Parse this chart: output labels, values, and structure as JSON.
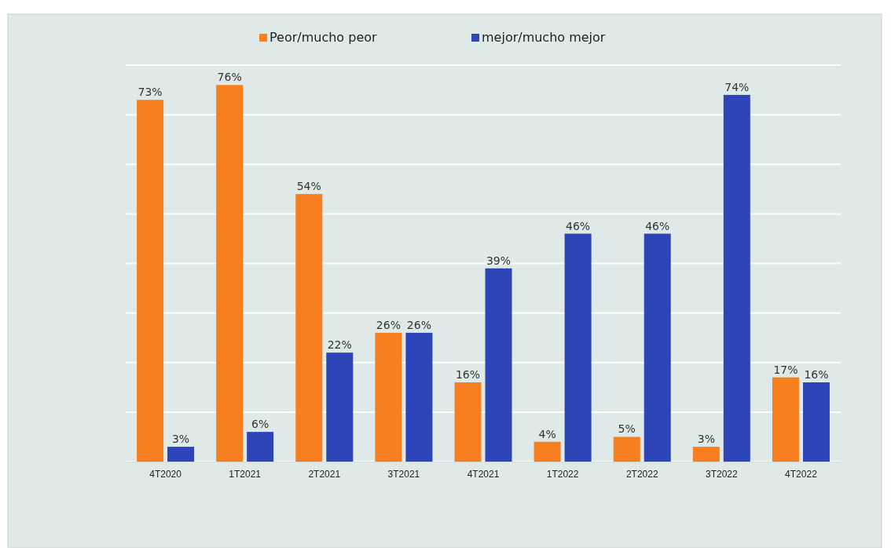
{
  "chart_data": {
    "type": "bar",
    "categories": [
      "4T2020",
      "1T2021",
      "2T2021",
      "3T2021",
      "4T2021",
      "1T2022",
      "2T2022",
      "3T2022",
      "4T2022"
    ],
    "series": [
      {
        "name": "Peor/mucho peor",
        "color": "#f77f1f",
        "values": [
          73,
          76,
          54,
          26,
          16,
          4,
          5,
          3,
          17
        ],
        "value_labels": [
          "73%",
          "76%",
          "54%",
          "26%",
          "16%",
          "4%",
          "5%",
          "3%",
          "17%"
        ]
      },
      {
        "name": "mejor/mucho mejor",
        "color": "#2e45b8",
        "values": [
          3,
          6,
          22,
          26,
          39,
          46,
          46,
          74,
          16
        ],
        "value_labels": [
          "3%",
          "6%",
          "22%",
          "26%",
          "39%",
          "46%",
          "46%",
          "74%",
          "16%"
        ]
      }
    ],
    "ylim": [
      0,
      80
    ],
    "yticks": [
      {
        "value": 0,
        "label": null
      },
      {
        "value": 10,
        "label": null
      },
      {
        "value": 20,
        "label": null
      },
      {
        "value": 30,
        "label": null
      },
      {
        "value": 40,
        "label": null
      },
      {
        "value": 50,
        "label": null
      },
      {
        "value": 60,
        "label": null
      },
      {
        "value": 70,
        "label": null
      },
      {
        "value": 80,
        "label": null
      }
    ],
    "grid": "y",
    "legend": "top",
    "tick_labels": "x"
  }
}
